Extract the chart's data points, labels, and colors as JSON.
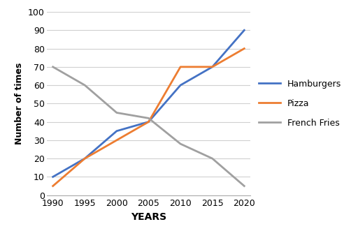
{
  "years": [
    1990,
    1995,
    2000,
    2005,
    2010,
    2015,
    2020
  ],
  "hamburgers": [
    10,
    20,
    35,
    40,
    60,
    70,
    90
  ],
  "pizza": [
    5,
    20,
    30,
    40,
    70,
    70,
    80
  ],
  "french_fries": [
    70,
    60,
    45,
    42,
    28,
    20,
    5
  ],
  "hamburgers_color": "#4472C4",
  "pizza_color": "#ED7D31",
  "french_fries_color": "#A0A0A0",
  "xlabel": "YEARS",
  "ylabel": "Number of times",
  "ylim": [
    0,
    100
  ],
  "yticks": [
    0,
    10,
    20,
    30,
    40,
    50,
    60,
    70,
    80,
    90,
    100
  ],
  "xticks": [
    1990,
    1995,
    2000,
    2005,
    2010,
    2015,
    2020
  ],
  "legend_labels": [
    "Hamburgers",
    "Pizza",
    "French Fries"
  ],
  "line_width": 2.0,
  "background_color": "#ffffff"
}
